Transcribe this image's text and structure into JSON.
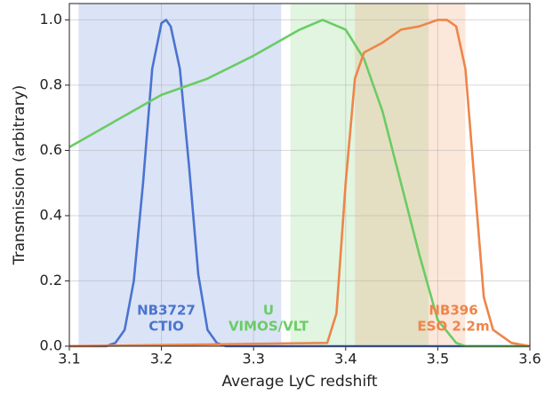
{
  "chart_data": {
    "type": "line",
    "xlabel": "Average LyC redshift",
    "ylabel": "Transmission (arbitrary)",
    "xlim": [
      3.1,
      3.6
    ],
    "ylim": [
      0,
      1.05
    ],
    "xticks": [
      3.1,
      3.2,
      3.3,
      3.4,
      3.5,
      3.6
    ],
    "yticks": [
      {
        "value": 0,
        "label": "0.0"
      },
      0.2,
      0.4,
      0.6,
      0.8,
      {
        "value": 1,
        "label": "1.0"
      }
    ],
    "grid": true,
    "series": [
      {
        "label_lines": [
          "NB3727",
          "CTIO"
        ],
        "color": "#4a74d0",
        "span": [
          3.11,
          3.33
        ],
        "x": [
          3.1,
          3.14,
          3.15,
          3.16,
          3.17,
          3.18,
          3.19,
          3.2,
          3.205,
          3.21,
          3.22,
          3.23,
          3.24,
          3.25,
          3.26,
          3.27,
          3.6
        ],
        "values": [
          0,
          0,
          0.01,
          0.05,
          0.2,
          0.5,
          0.85,
          0.99,
          1.0,
          0.98,
          0.85,
          0.55,
          0.22,
          0.05,
          0.01,
          0,
          0
        ]
      },
      {
        "label_lines": [
          "U",
          "VIMOS/VLT"
        ],
        "color": "#6acc64",
        "span": [
          3.34,
          3.49
        ],
        "x": [
          3.1,
          3.15,
          3.2,
          3.25,
          3.3,
          3.35,
          3.375,
          3.4,
          3.42,
          3.44,
          3.46,
          3.48,
          3.5,
          3.52,
          3.53,
          3.6
        ],
        "values": [
          0.61,
          0.69,
          0.77,
          0.82,
          0.89,
          0.97,
          1.0,
          0.97,
          0.88,
          0.72,
          0.5,
          0.28,
          0.08,
          0.01,
          0,
          0
        ]
      },
      {
        "label_lines": [
          "NB396",
          "ESO 2.2m"
        ],
        "color": "#ee854a",
        "span": [
          3.41,
          3.53
        ],
        "x": [
          3.1,
          3.38,
          3.39,
          3.4,
          3.41,
          3.42,
          3.44,
          3.46,
          3.48,
          3.5,
          3.51,
          3.52,
          3.53,
          3.54,
          3.55,
          3.56,
          3.58,
          3.6
        ],
        "values": [
          0,
          0.01,
          0.1,
          0.5,
          0.82,
          0.9,
          0.93,
          0.97,
          0.98,
          1.0,
          1.0,
          0.98,
          0.85,
          0.5,
          0.15,
          0.05,
          0.01,
          0
        ]
      }
    ]
  }
}
